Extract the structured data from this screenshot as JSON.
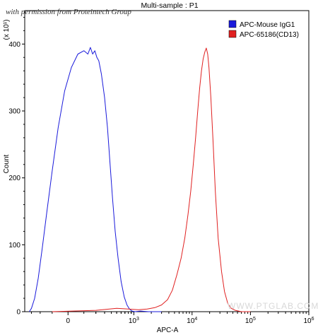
{
  "watermark": {
    "credit": "with permission from Proteintech Group",
    "site": "WWW.PTGLAB.COM"
  },
  "chart_data": {
    "type": "line",
    "title": "Multi-sample : P1",
    "xlabel": "APC-A",
    "ylabel": "Count",
    "y_multiplier": "(x 10¹)",
    "ylim": [
      0,
      450
    ],
    "y_ticks": [
      0,
      100,
      200,
      300,
      400
    ],
    "x_scale": "biexponential",
    "xlim": [
      -400,
      1000000
    ],
    "x_ticks": [
      {
        "value": 0,
        "label": "0",
        "exp": ""
      },
      {
        "value": 1000,
        "label": "10",
        "exp": "3"
      },
      {
        "value": 10000,
        "label": "10",
        "exp": "4"
      },
      {
        "value": 100000,
        "label": "10",
        "exp": "5"
      },
      {
        "value": 1000000,
        "label": "10",
        "exp": "6"
      }
    ],
    "grid": false,
    "legend_position": "top-right",
    "series": [
      {
        "name": "APC-Mouse IgG1",
        "color": "#1a1adb",
        "x": [
          -330,
          -300,
          -260,
          -220,
          -180,
          -140,
          -100,
          -60,
          -20,
          20,
          60,
          100,
          130,
          150,
          170,
          190,
          210,
          230,
          260,
          300,
          340,
          380,
          420,
          470,
          530,
          600,
          680,
          760,
          840,
          930,
          1050,
          1300,
          1800,
          2400,
          3000
        ],
        "y": [
          0,
          5,
          20,
          50,
          95,
          150,
          210,
          275,
          330,
          365,
          385,
          390,
          385,
          395,
          385,
          390,
          380,
          375,
          355,
          320,
          275,
          220,
          170,
          120,
          80,
          45,
          22,
          10,
          4,
          1,
          0,
          1,
          0,
          0,
          0
        ]
      },
      {
        "name": "APC-65186(CD13)",
        "color": "#e02020",
        "x": [
          -100,
          200,
          500,
          800,
          1200,
          1700,
          2300,
          3000,
          3800,
          4600,
          5500,
          6500,
          7500,
          8500,
          9500,
          10500,
          11500,
          12500,
          13500,
          14500,
          15500,
          16500,
          17500,
          18500,
          19500,
          21000,
          23000,
          25000,
          28000,
          32000,
          36000,
          41000,
          47000,
          55000,
          70000,
          100000
        ],
        "y": [
          0,
          2,
          5,
          4,
          3,
          4,
          6,
          10,
          18,
          32,
          55,
          80,
          110,
          145,
          180,
          220,
          260,
          300,
          335,
          360,
          378,
          388,
          394,
          385,
          365,
          320,
          250,
          180,
          110,
          60,
          30,
          12,
          5,
          2,
          0,
          0
        ]
      }
    ]
  }
}
